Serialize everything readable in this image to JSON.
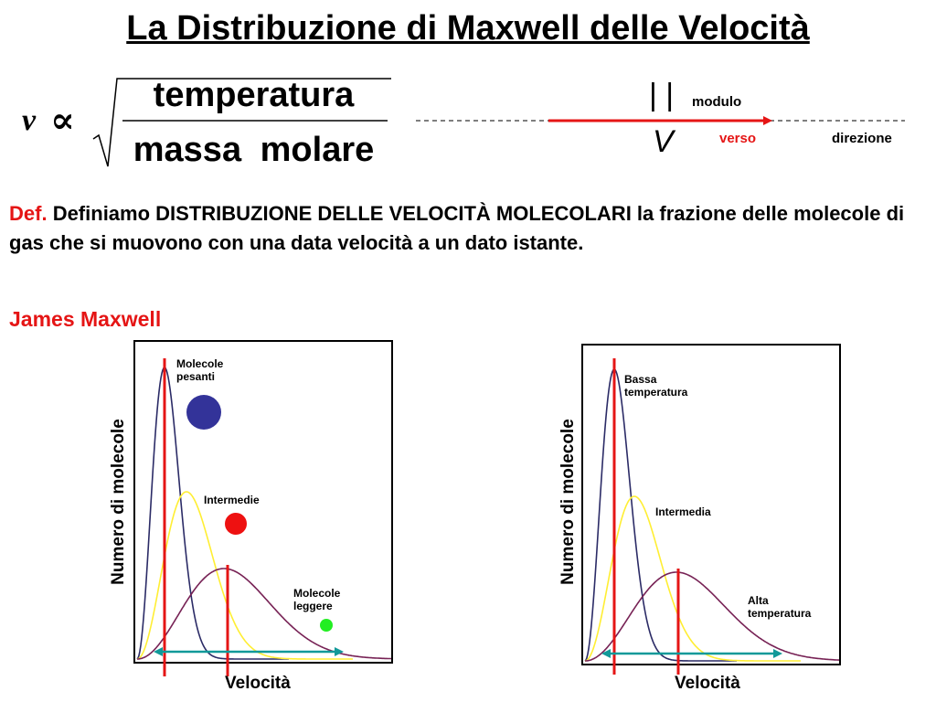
{
  "title": "La Distribuzione di Maxwell delle Velocità",
  "formula": {
    "variable": "v",
    "proportional_symbol": "∝",
    "numerator": "temperatura",
    "denominator": "massa molare"
  },
  "vector_diagram": {
    "bars": "| |",
    "symbol": "V",
    "modulo_label": "modulo",
    "verso_label": "verso",
    "direzione_label": "direzione",
    "arrow_color": "#e51515"
  },
  "definition": {
    "label": "Def.",
    "text": "Definiamo DISTRIBUZIONE DELLE VELOCITÀ MOLECOLARI la frazione delle molecole di gas che si muovono con una data velocità a un dato istante."
  },
  "author": "James Maxwell",
  "charts": {
    "left": {
      "ylabel": "Numero di molecole",
      "xlabel": "Velocità",
      "labels": {
        "heavy": [
          "Molecole",
          "pesanti"
        ],
        "medium": "Intermedie",
        "light": [
          "Molecole",
          "leggere"
        ]
      },
      "particle_colors": [
        "#333399",
        "#ee1111",
        "#22ee22"
      ]
    },
    "right": {
      "ylabel": "Numero di molecole",
      "xlabel": "Velocità",
      "labels": {
        "low": [
          "Bassa",
          "temperatura"
        ],
        "medium": "Intermedia",
        "high": [
          "Alta",
          "temperatura"
        ]
      }
    },
    "curve_colors": [
      "#2b2b66",
      "#ffee33",
      "#772255"
    ],
    "marker_color": "#e51515",
    "range_arrow_color": "#119999"
  }
}
